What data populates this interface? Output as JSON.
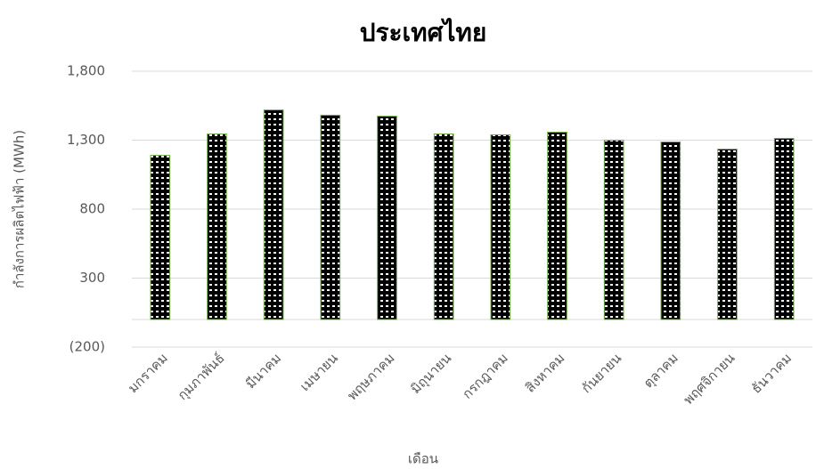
{
  "chart_data": {
    "type": "bar",
    "title": "ประเทศไทย",
    "x_label": "เดือน",
    "y_label": "กำลังการผลิตไฟฟ้า (MWh)",
    "categories": [
      "มกราคม",
      "กุมภาพันธ์",
      "มีนาคม",
      "เมษายน",
      "พฤษภาคม",
      "มิถุนายน",
      "กรกฎาคม",
      "สิงหาคม",
      "กันยายน",
      "ตุลาคม",
      "พฤศจิกายน",
      "ธันวาคม"
    ],
    "values": [
      1190,
      1345,
      1519,
      1481,
      1474,
      1345,
      1339,
      1358,
      1300,
      1287,
      1235,
      1313
    ],
    "color": "#70ad47",
    "ylim": [
      -200,
      1800
    ],
    "yticks": [
      {
        "value": -200,
        "label": "(200)"
      },
      300,
      800,
      {
        "value": 1300,
        "label": "1,300"
      },
      {
        "value": 1800,
        "label": "1,800"
      }
    ],
    "grid": true
  }
}
